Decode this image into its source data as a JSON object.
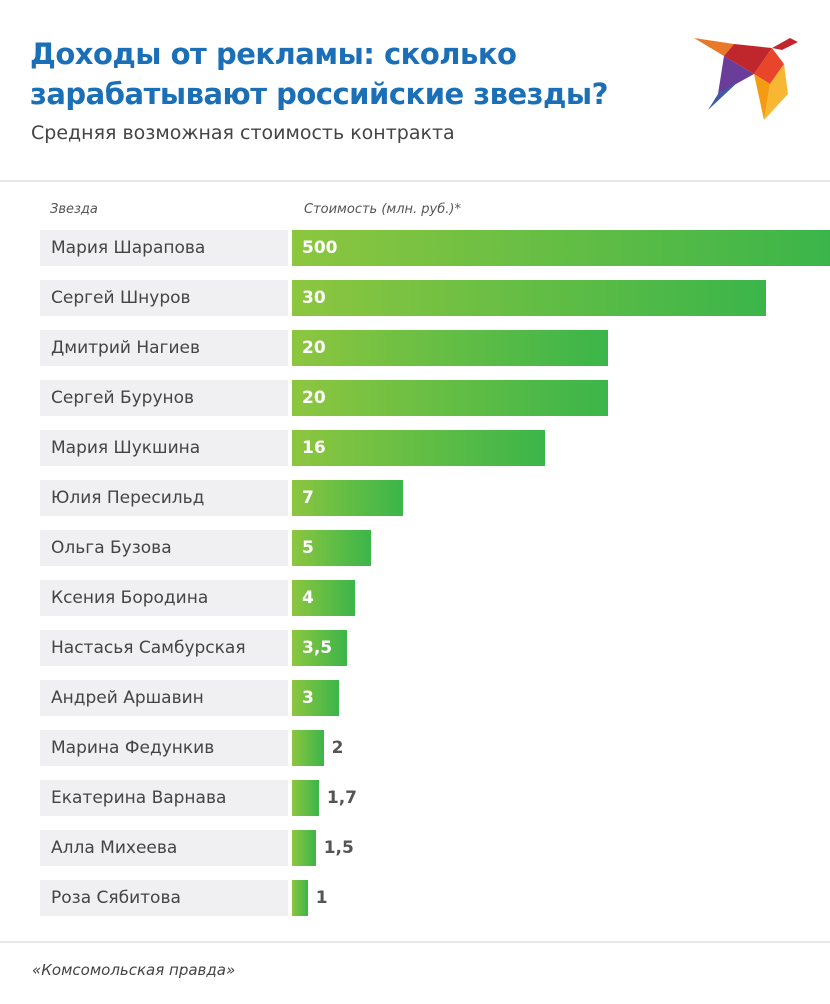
{
  "header": {
    "title": "Доходы от рекламы: сколько зарабатывают российские звезды?",
    "subtitle": "Средняя возможная стоимость контракта",
    "logo_icon": "bird-logo-icon"
  },
  "footer": {
    "source": "«Комсомольская правда»"
  },
  "chart_data": {
    "type": "bar",
    "orientation": "horizontal",
    "title": "Доходы от рекламы: сколько зарабатывают российские звезды?",
    "subtitle": "Средняя возможная стоимость контракта",
    "category_header": "Звезда",
    "value_header": "Стоимость (млн. руб.)*",
    "categories": [
      "Мария Шарапова",
      "Сергей Шнуров",
      "Дмитрий Нагиев",
      "Сергей Бурунов",
      "Мария Шукшина",
      "Юлия Пересильд",
      "Ольга Бузова",
      "Ксения Бородина",
      "Настасья Самбурская",
      "Андрей Аршавин",
      "Марина Федункив",
      "Екатерина Варнава",
      "Алла Михеева",
      "Роза Сябитова"
    ],
    "values": [
      500,
      30,
      20,
      20,
      16,
      7,
      5,
      4,
      3.5,
      3,
      2,
      1.7,
      1.5,
      1
    ],
    "value_labels": [
      "500",
      "30",
      "20",
      "20",
      "16",
      "7",
      "5",
      "4",
      "3,5",
      "3",
      "2",
      "1,7",
      "1,5",
      "1"
    ],
    "bar_color_start": "#8dc63f",
    "bar_color_end": "#3bb54a",
    "grid": false
  }
}
